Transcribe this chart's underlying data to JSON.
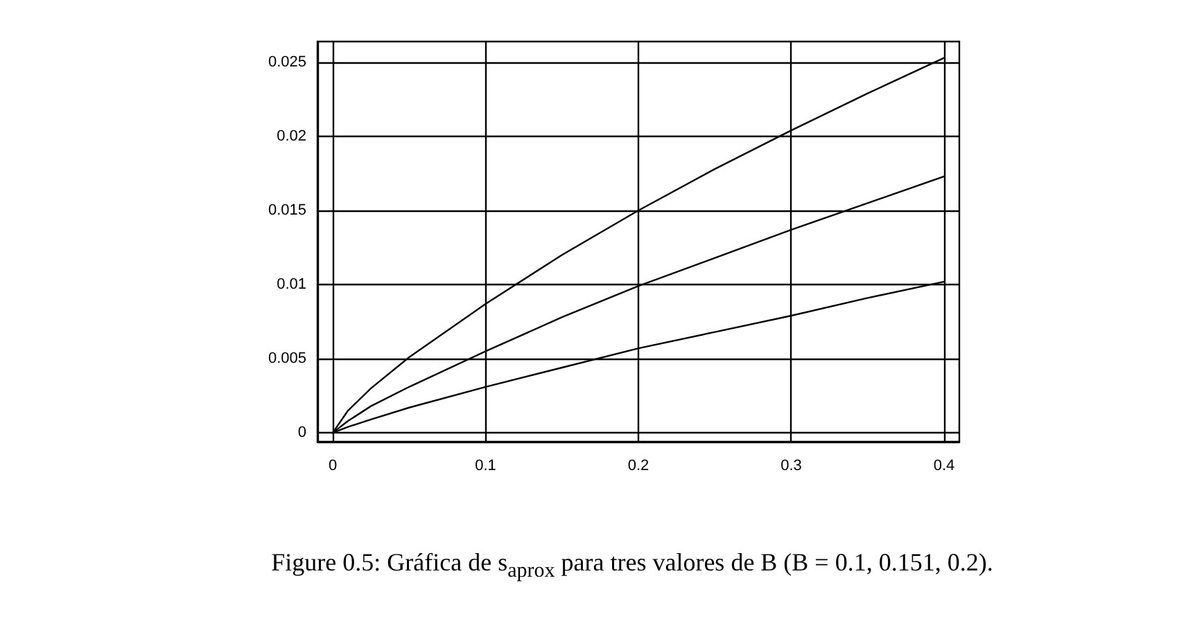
{
  "chart_data": {
    "type": "line",
    "annotations": [
      "Figure 0.5: Gráfica de s$_{aprox}$ para tres valores de B (B = 0.1, 0.151, 0.2)."
    ],
    "x": [
      0,
      0.01,
      0.025,
      0.05,
      0.1,
      0.15,
      0.2,
      0.25,
      0.3,
      0.35,
      0.4
    ],
    "series": [
      {
        "color": "#000000",
        "values": [
          0,
          0.0015,
          0.003,
          0.0051,
          0.0087,
          0.012,
          0.015,
          0.0178,
          0.0204,
          0.0229,
          0.0253
        ]
      },
      {
        "color": "#000000",
        "values": [
          0,
          0.0008,
          0.0018,
          0.0031,
          0.0055,
          0.0078,
          0.0099,
          0.0118,
          0.0137,
          0.0155,
          0.0173
        ]
      },
      {
        "color": "#000000",
        "values": [
          0,
          0.0004,
          0.0009,
          0.0017,
          0.0031,
          0.0044,
          0.0057,
          0.0068,
          0.0079,
          0.0091,
          0.0102
        ]
      }
    ],
    "xlim": [
      -0.01,
      0.41
    ],
    "ylim": [
      -0.0006,
      0.0264
    ],
    "xticks": [
      0,
      0.1,
      0.2,
      0.3,
      0.4
    ],
    "yticks": [
      0,
      0.005,
      0.01,
      0.015,
      0.02,
      0.025
    ],
    "grid": true,
    "marker": "none",
    "line_style": "solid"
  }
}
